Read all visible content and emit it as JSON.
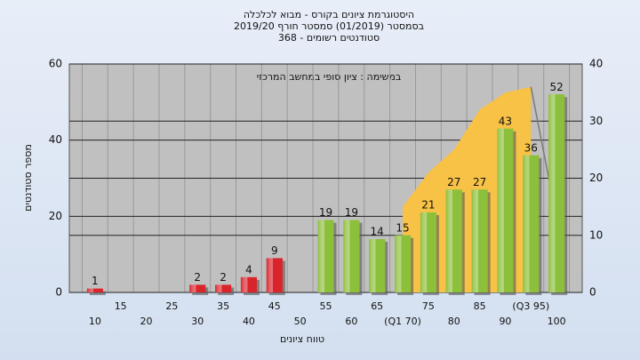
{
  "chart_data": {
    "type": "bar",
    "title": "היסטוגרמת ציונים בקורס - מבוא לכלכלה",
    "subtitle": "בסמסטר  (01/2019)  סמסטר חורף 2019/20",
    "subtitle2": "סטודנטים רשומים - 368",
    "annotation": "במשימה : ציון סופי במחשב המרכזי",
    "x_label": "טווח ציונים",
    "y_label": "מספר סטודנטים",
    "categories": [
      "10",
      "15",
      "20",
      "25",
      "30",
      "35",
      "40",
      "45",
      "50",
      "55",
      "60",
      "65",
      "(Q1 70)",
      "75",
      "80",
      "85",
      "90",
      "(Q3 95)",
      "100"
    ],
    "series": [
      {
        "type": "bar",
        "values": [
          1,
          0,
          0,
          0,
          2,
          2,
          4,
          9,
          0,
          19,
          19,
          14,
          15,
          21,
          27,
          27,
          43,
          36,
          52
        ],
        "colors": [
          "#d9242b",
          "#d9242b",
          "#d9242b",
          "#d9242b",
          "#d9242b",
          "#d9242b",
          "#d9242b",
          "#d9242b",
          "#d9242b",
          "#8cbf3a",
          "#8cbf3a",
          "#8cbf3a",
          "#8cbf3a",
          "#8cbf3a",
          "#8cbf3a",
          "#8cbf3a",
          "#8cbf3a",
          "#8cbf3a",
          "#8cbf3a"
        ]
      },
      {
        "type": "area",
        "axis": "y2",
        "color": "#f7c245",
        "values": [
          null,
          null,
          null,
          null,
          null,
          null,
          null,
          null,
          null,
          null,
          null,
          null,
          15,
          21,
          25,
          32,
          35,
          36,
          null
        ]
      },
      {
        "type": "line",
        "axis": "y2",
        "color": "#7a7a7a",
        "values": [
          null,
          null,
          null,
          null,
          null,
          null,
          null,
          null,
          null,
          null,
          null,
          null,
          null,
          null,
          null,
          null,
          null,
          36,
          13
        ]
      }
    ],
    "ylim": [
      0,
      60
    ],
    "yticks": [
      0,
      20,
      40,
      60
    ],
    "y2lim": [
      0,
      40
    ],
    "y2ticks": [
      0,
      10,
      20,
      30,
      40
    ],
    "grid": true
  }
}
